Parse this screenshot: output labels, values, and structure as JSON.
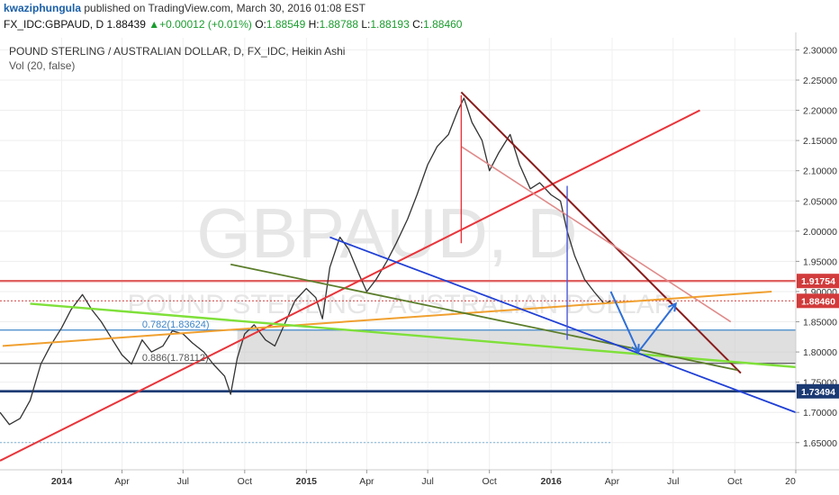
{
  "header": {
    "user": "kwaziphungula",
    "published_text": " published on TradingView.com, March 30, 2016 01:08 EST"
  },
  "quote": {
    "symbol": "FX_IDC:GBPAUD, D",
    "last": "1.88439",
    "change": "+0.00012 (+0.01%)",
    "o_label": "O:",
    "o": "1.88549",
    "h_label": "H:",
    "h": "1.88788",
    "l_label": "L:",
    "l": "1.88193",
    "c_label": "C:",
    "c": "1.88460",
    "up_arrow": "▲"
  },
  "pane": {
    "title": "POUND STERLING / AUSTRALIAN DOLLAR, D, FX_IDC, Heikin Ashi",
    "volume": "Vol (20, false)"
  },
  "chart_data": {
    "type": "line",
    "watermark_symbol": "GBPAUD, D",
    "watermark_name": "POUND STERLING / AUSTRALIAN DOLLAR",
    "y_ticks": [
      "2.30000",
      "2.25000",
      "2.20000",
      "2.15000",
      "2.10000",
      "2.05000",
      "2.00000",
      "1.95000",
      "1.90000",
      "1.85000",
      "1.80000",
      "1.75000",
      "1.70000",
      "1.65000"
    ],
    "ylim": [
      1.605,
      2.32
    ],
    "xlim": [
      "2013-10-01",
      "2016-12-31"
    ],
    "x_ticks": [
      {
        "label": "2014",
        "date": "2014-01-01",
        "bold": true
      },
      {
        "label": "Apr",
        "date": "2014-04-01",
        "bold": false
      },
      {
        "label": "Jul",
        "date": "2014-07-01",
        "bold": false
      },
      {
        "label": "Oct",
        "date": "2014-10-01",
        "bold": false
      },
      {
        "label": "2015",
        "date": "2015-01-01",
        "bold": true
      },
      {
        "label": "Apr",
        "date": "2015-04-01",
        "bold": false
      },
      {
        "label": "Jul",
        "date": "2015-07-01",
        "bold": false
      },
      {
        "label": "Oct",
        "date": "2015-10-01",
        "bold": false
      },
      {
        "label": "2016",
        "date": "2016-01-01",
        "bold": true
      },
      {
        "label": "Apr",
        "date": "2016-04-01",
        "bold": false
      },
      {
        "label": "Jul",
        "date": "2016-07-01",
        "bold": false
      },
      {
        "label": "Oct",
        "date": "2016-10-01",
        "bold": false
      },
      {
        "label": "20",
        "date": "2016-12-31",
        "bold": false
      }
    ],
    "price_series": [
      [
        "2013-10-01",
        1.7
      ],
      [
        "2013-10-15",
        1.68
      ],
      [
        "2013-10-31",
        1.69
      ],
      [
        "2013-11-15",
        1.72
      ],
      [
        "2013-12-01",
        1.78
      ],
      [
        "2013-12-15",
        1.81
      ],
      [
        "2014-01-01",
        1.84
      ],
      [
        "2014-01-15",
        1.87
      ],
      [
        "2014-02-01",
        1.895
      ],
      [
        "2014-02-15",
        1.87
      ],
      [
        "2014-03-01",
        1.85
      ],
      [
        "2014-03-15",
        1.825
      ],
      [
        "2014-04-01",
        1.795
      ],
      [
        "2014-04-15",
        1.78
      ],
      [
        "2014-05-01",
        1.82
      ],
      [
        "2014-05-15",
        1.8
      ],
      [
        "2014-06-01",
        1.81
      ],
      [
        "2014-06-15",
        1.835
      ],
      [
        "2014-07-01",
        1.83
      ],
      [
        "2014-07-15",
        1.815
      ],
      [
        "2014-08-01",
        1.8
      ],
      [
        "2014-08-15",
        1.78
      ],
      [
        "2014-09-01",
        1.76
      ],
      [
        "2014-09-10",
        1.73
      ],
      [
        "2014-09-20",
        1.79
      ],
      [
        "2014-10-01",
        1.83
      ],
      [
        "2014-10-15",
        1.845
      ],
      [
        "2014-11-01",
        1.82
      ],
      [
        "2014-11-15",
        1.81
      ],
      [
        "2014-12-01",
        1.85
      ],
      [
        "2014-12-15",
        1.885
      ],
      [
        "2015-01-01",
        1.905
      ],
      [
        "2015-01-15",
        1.89
      ],
      [
        "2015-01-25",
        1.855
      ],
      [
        "2015-02-05",
        1.94
      ],
      [
        "2015-02-20",
        1.99
      ],
      [
        "2015-03-05",
        1.97
      ],
      [
        "2015-03-20",
        1.93
      ],
      [
        "2015-04-01",
        1.9
      ],
      [
        "2015-04-15",
        1.92
      ],
      [
        "2015-05-01",
        1.95
      ],
      [
        "2015-05-15",
        1.98
      ],
      [
        "2015-06-01",
        2.02
      ],
      [
        "2015-06-15",
        2.06
      ],
      [
        "2015-07-01",
        2.11
      ],
      [
        "2015-07-15",
        2.14
      ],
      [
        "2015-08-01",
        2.16
      ],
      [
        "2015-08-15",
        2.2
      ],
      [
        "2015-08-24",
        2.22
      ],
      [
        "2015-09-05",
        2.18
      ],
      [
        "2015-09-20",
        2.15
      ],
      [
        "2015-10-01",
        2.1
      ],
      [
        "2015-10-15",
        2.13
      ],
      [
        "2015-11-01",
        2.16
      ],
      [
        "2015-11-15",
        2.11
      ],
      [
        "2015-12-01",
        2.07
      ],
      [
        "2015-12-15",
        2.08
      ],
      [
        "2016-01-01",
        2.06
      ],
      [
        "2016-01-15",
        2.05
      ],
      [
        "2016-01-25",
        2.0
      ],
      [
        "2016-02-05",
        1.96
      ],
      [
        "2016-02-20",
        1.92
      ],
      [
        "2016-03-05",
        1.9
      ],
      [
        "2016-03-20",
        1.88
      ],
      [
        "2016-03-30",
        1.8846
      ]
    ],
    "price_labels": [
      {
        "text": "1.91754",
        "value": 1.91754,
        "color": "#d23b3b"
      },
      {
        "text": "1.88460",
        "value": 1.8846,
        "color": "#d23b3b"
      },
      {
        "text": "1.73494",
        "value": 1.73494,
        "color": "#1b3a73"
      }
    ],
    "hlines": [
      {
        "value": 1.91754,
        "color": "#e06262",
        "width": 2.4
      },
      {
        "value": 1.73494,
        "color": "#1b3a73",
        "width": 2.8
      },
      {
        "value": 1.83624,
        "color": "#3f86c9",
        "width": 1.2
      },
      {
        "value": 1.78112,
        "color": "#555555",
        "width": 1.2
      }
    ],
    "dotted_lines": [
      {
        "value": 1.8846,
        "color": "#d23b3b",
        "from": "2013-10-01",
        "to": "2016-12-31"
      },
      {
        "value": 1.65,
        "color": "#7ab3d9",
        "from": "2013-10-01",
        "to": "2016-04-01"
      }
    ],
    "fib_zone": {
      "from": "2014-09-20",
      "top": 1.83624,
      "bottom": 1.78112
    },
    "fib_labels": [
      {
        "text": "0.782(1.83624)",
        "date": "2014-05-01",
        "value": 1.83624,
        "color": "#3f86c9"
      },
      {
        "text": "0.886(1.78112)",
        "date": "2014-05-01",
        "value": 1.78112,
        "color": "#555555"
      }
    ],
    "trendlines": [
      {
        "color": "#e8343a",
        "width": 2,
        "p1": [
          "2013-10-01",
          1.62
        ],
        "p2": [
          "2016-08-10",
          2.2
        ]
      },
      {
        "color": "#8a1c1c",
        "width": 2,
        "p1": [
          "2015-08-20",
          2.23
        ],
        "p2": [
          "2016-10-10",
          1.765
        ]
      },
      {
        "color": "#e08a8a",
        "width": 1.6,
        "p1": [
          "2015-08-20",
          2.14
        ],
        "p2": [
          "2016-09-25",
          1.85
        ]
      },
      {
        "color": "#f0a030",
        "width": 2,
        "p1": [
          "2013-10-05",
          1.81
        ],
        "p2": [
          "2016-11-25",
          1.9
        ]
      },
      {
        "color": "#7fe03a",
        "width": 2.4,
        "p1": [
          "2013-11-15",
          1.88
        ],
        "p2": [
          "2016-12-31",
          1.775
        ]
      },
      {
        "color": "#5b7d2a",
        "width": 1.8,
        "p1": [
          "2014-09-10",
          1.945
        ],
        "p2": [
          "2016-10-05",
          1.77
        ]
      },
      {
        "color": "#1f3fd6",
        "width": 1.8,
        "p1": [
          "2015-02-05",
          1.99
        ],
        "p2": [
          "2016-12-31",
          1.7
        ]
      },
      {
        "color": "#e8343a",
        "width": 1.4,
        "p1": [
          "2015-08-20",
          1.98
        ],
        "p2": [
          "2015-08-20",
          2.225
        ]
      },
      {
        "color": "#4a5ad6",
        "width": 1.4,
        "p1": [
          "2016-01-25",
          1.82
        ],
        "p2": [
          "2016-01-25",
          2.075
        ]
      }
    ],
    "projection_path": {
      "color": "#2f6fd6",
      "points": [
        [
          "2016-03-30",
          1.9
        ],
        [
          "2016-05-10",
          1.8
        ],
        [
          "2016-07-05",
          1.88
        ]
      ]
    }
  }
}
